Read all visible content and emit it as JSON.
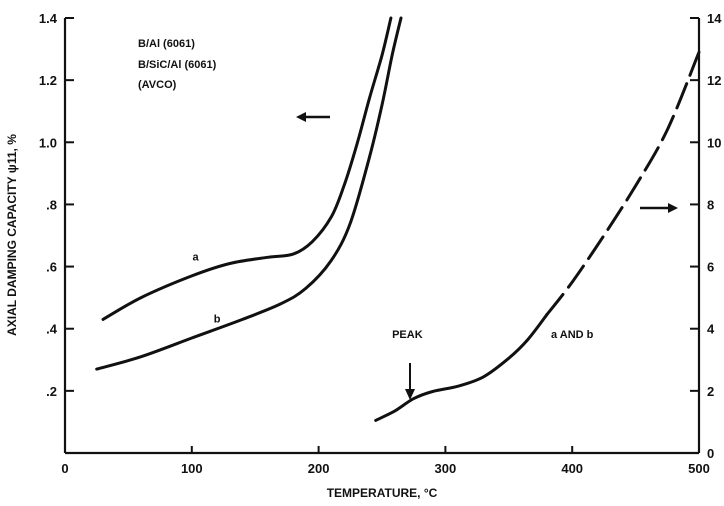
{
  "chart_data": {
    "type": "line",
    "xlabel": "TEMPERATURE, °C",
    "ylabel": "AXIAL DAMPING CAPACITY ψ11, %",
    "xlim": [
      0,
      500
    ],
    "ylim_left": [
      0,
      1.4
    ],
    "ylim_right": [
      0,
      14
    ],
    "x_ticks": [
      0,
      100,
      200,
      300,
      400,
      500
    ],
    "x_tick_labels": [
      "0",
      "100",
      "200",
      "300",
      "400",
      "500"
    ],
    "y_left_ticks": [
      0.2,
      0.4,
      0.6,
      0.8,
      1.0,
      1.2,
      1.4
    ],
    "y_left_tick_labels": [
      ".2",
      ".4",
      ".6",
      ".8",
      "1.0",
      "1.2",
      "1.4"
    ],
    "y_right_ticks": [
      0,
      2,
      4,
      6,
      8,
      10,
      12,
      14
    ],
    "y_right_tick_labels": [
      "0",
      "2",
      "4",
      "6",
      "8",
      "10",
      "12",
      "14"
    ],
    "legend_lines": [
      "B/Al (6061)",
      "B/SiC/Al (6061)",
      "(AVCO)"
    ],
    "series": [
      {
        "name": "a",
        "axis": "left",
        "style": "solid",
        "points": [
          [
            30,
            0.43
          ],
          [
            60,
            0.5
          ],
          [
            100,
            0.57
          ],
          [
            130,
            0.61
          ],
          [
            160,
            0.63
          ],
          [
            180,
            0.64
          ],
          [
            195,
            0.68
          ],
          [
            210,
            0.76
          ],
          [
            220,
            0.86
          ],
          [
            230,
            0.99
          ],
          [
            240,
            1.14
          ],
          [
            250,
            1.28
          ],
          [
            257,
            1.4
          ]
        ]
      },
      {
        "name": "b",
        "axis": "left",
        "style": "solid",
        "points": [
          [
            25,
            0.27
          ],
          [
            60,
            0.31
          ],
          [
            100,
            0.37
          ],
          [
            140,
            0.43
          ],
          [
            170,
            0.48
          ],
          [
            190,
            0.53
          ],
          [
            210,
            0.62
          ],
          [
            225,
            0.74
          ],
          [
            240,
            0.95
          ],
          [
            250,
            1.12
          ],
          [
            258,
            1.28
          ],
          [
            265,
            1.4
          ]
        ]
      },
      {
        "name": "a AND b",
        "axis": "right",
        "style": "solid",
        "points": [
          [
            245,
            1.05
          ],
          [
            260,
            1.35
          ],
          [
            275,
            1.75
          ],
          [
            290,
            1.98
          ],
          [
            310,
            2.15
          ],
          [
            330,
            2.45
          ],
          [
            350,
            3.05
          ],
          [
            365,
            3.65
          ],
          [
            380,
            4.45
          ]
        ]
      },
      {
        "name": "a AND b",
        "axis": "right",
        "style": "dashed",
        "points": [
          [
            380,
            4.45
          ],
          [
            400,
            5.5
          ],
          [
            425,
            7.0
          ],
          [
            450,
            8.6
          ],
          [
            475,
            10.4
          ],
          [
            500,
            12.9
          ]
        ]
      }
    ],
    "annotations": [
      {
        "text": "a",
        "x": 103,
        "y": 0.62,
        "axis": "left"
      },
      {
        "text": "b",
        "x": 120,
        "y": 0.42,
        "axis": "left"
      },
      {
        "text": "PEAK",
        "x": 270,
        "y": 3.7,
        "axis": "right"
      },
      {
        "text": "a AND b",
        "x": 400,
        "y": 3.7,
        "axis": "right"
      }
    ]
  }
}
